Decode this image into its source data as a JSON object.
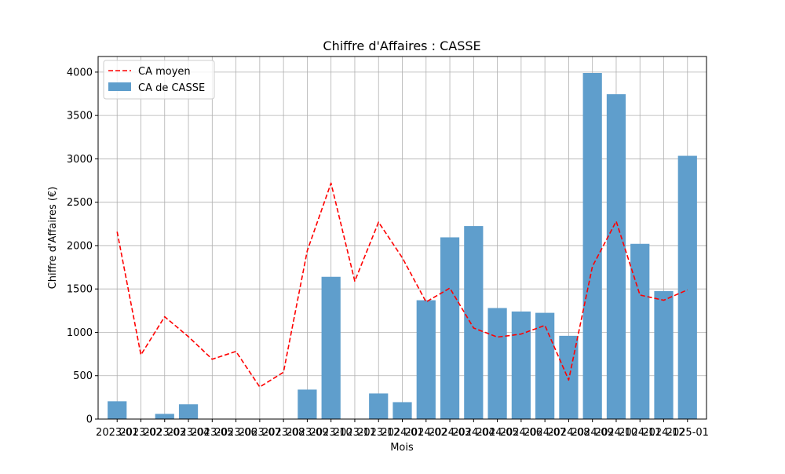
{
  "chart_data": {
    "type": "bar",
    "title": "Chiffre d'Affaires : CASSE",
    "xlabel": "Mois",
    "ylabel": "Chiffre d'Affaires (€)",
    "ylim": [
      0,
      4180
    ],
    "yticks": [
      0,
      500,
      1000,
      1500,
      2000,
      2500,
      3000,
      3500,
      4000
    ],
    "grid": true,
    "legend_position": "top-left",
    "categories": [
      "2023-01",
      "2023-02",
      "2023-03",
      "2023-04",
      "2023-05",
      "2023-06",
      "2023-07",
      "2023-08",
      "2023-09",
      "2023-10",
      "2023-11",
      "2023-12",
      "2024-01",
      "2024-02",
      "2024-03",
      "2024-04",
      "2024-05",
      "2024-06",
      "2024-07",
      "2024-08",
      "2024-09",
      "2024-10",
      "2024-11",
      "2024-12",
      "2025-01"
    ],
    "tick_labels": [
      "2023-01",
      "2023-02",
      "2023-03",
      "2023-04",
      "2023-05",
      "2023-06",
      "2023-07",
      "2023-08",
      "2023-09",
      "2023-10",
      "2023-11",
      "2023-12",
      "2024-01",
      "2024-02",
      "2024-03",
      "2024-04",
      "2024-05",
      "2024-06",
      "2024-07",
      "2024-08",
      "2024-09",
      "2024-10",
      "2024-11",
      "2024-12",
      "2025-01"
    ],
    "series": [
      {
        "name": "CA de CASSE",
        "kind": "bar",
        "color": "#5f9ecc",
        "values": [
          205,
          0,
          60,
          170,
          0,
          0,
          0,
          0,
          340,
          1640,
          0,
          295,
          195,
          1370,
          2095,
          2225,
          1280,
          1240,
          1225,
          960,
          3990,
          3745,
          2020,
          1475,
          3035
        ]
      },
      {
        "name": "CA moyen",
        "kind": "line",
        "style": "dashed",
        "color": "#ff0000",
        "values": [
          2160,
          740,
          1180,
          950,
          690,
          780,
          370,
          540,
          1940,
          2720,
          1590,
          2270,
          1860,
          1350,
          1510,
          1050,
          945,
          980,
          1080,
          450,
          1760,
          2280,
          1430,
          1370,
          1490
        ]
      }
    ]
  }
}
